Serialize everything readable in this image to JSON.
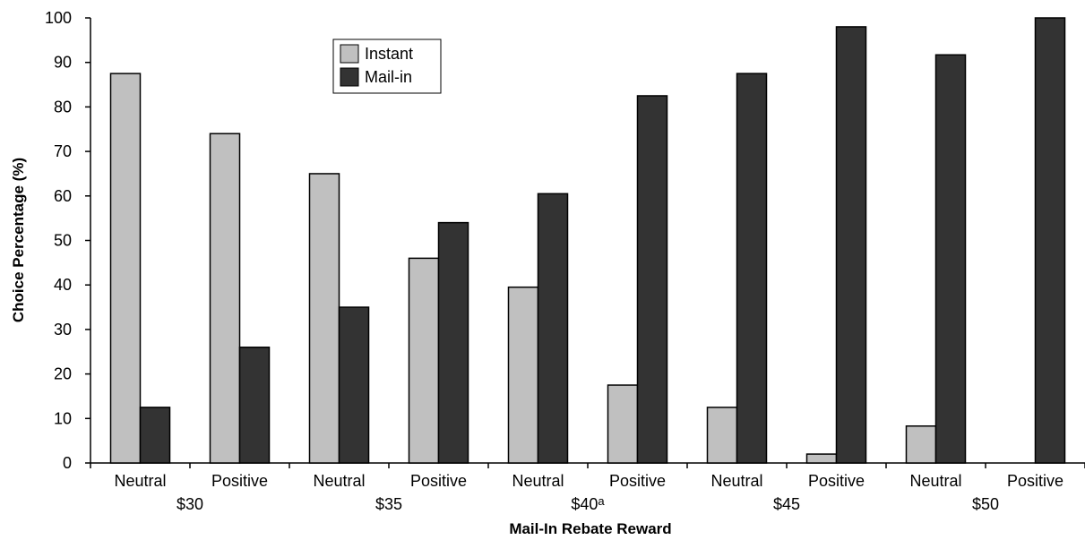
{
  "chart_data": {
    "type": "bar",
    "xlabel": "Mail-In Rebate Reward",
    "ylabel": "Choice Percentage (%)",
    "ylim": [
      0,
      100
    ],
    "yticks": [
      0,
      10,
      20,
      30,
      40,
      50,
      60,
      70,
      80,
      90,
      100
    ],
    "grid": false,
    "legend_position": "top-left",
    "categories": [
      "Neutral",
      "Positive",
      "Neutral",
      "Positive",
      "Neutral",
      "Positive",
      "Neutral",
      "Positive",
      "Neutral",
      "Positive"
    ],
    "groups": [
      {
        "label": "$30"
      },
      {
        "label": "$35"
      },
      {
        "label": "$40",
        "superscript": "a"
      },
      {
        "label": "$45"
      },
      {
        "label": "$50"
      }
    ],
    "series": [
      {
        "name": "Instant",
        "color": "#c0c0c0",
        "values": [
          87.5,
          74,
          65,
          46,
          39.5,
          17.5,
          12.5,
          2,
          8.3,
          0
        ]
      },
      {
        "name": "Mail-in",
        "color": "#333333",
        "values": [
          12.5,
          26,
          35,
          54,
          60.5,
          82.5,
          87.5,
          98,
          91.7,
          100
        ]
      }
    ]
  }
}
